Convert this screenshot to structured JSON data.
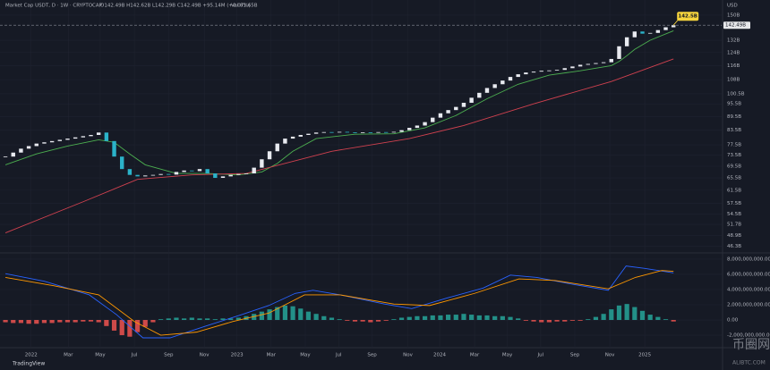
{
  "header": {
    "symbol": "Market Cap USDT, D · 1W · CRYPTOCAP",
    "ohlc": "O142.49B H142.62B L142.29B C142.49B +95.14M (+0.07%)",
    "volume": "Vol 81.65B",
    "currency": "USD",
    "brand": "TradingView",
    "watermark": "币圈网",
    "watermark_sub": "ALIBTC.COM"
  },
  "chart_data": [
    {
      "type": "candlestick",
      "log": true,
      "grid": true,
      "up_color": "#e8eaf0",
      "down_color": "#2bb3c9",
      "closes": [
        73,
        74.5,
        76,
        77,
        78,
        78.5,
        79,
        79.5,
        80,
        80.5,
        81,
        81.5,
        82.5,
        79,
        73,
        68.5,
        66.5,
        66,
        66.3,
        66.5,
        66.8,
        66.6,
        67.5,
        68,
        67.8,
        68.5,
        67,
        65.5,
        66,
        66.5,
        66.8,
        67,
        69,
        72,
        75,
        78,
        80,
        80.8,
        81.5,
        82,
        82.5,
        82.7,
        82.5,
        82.8,
        82.6,
        82.4,
        82.6,
        82.5,
        82.7,
        82.5,
        82.8,
        83.5,
        84.5,
        85.5,
        87,
        89,
        91,
        92.5,
        94,
        96,
        98.5,
        101,
        103.5,
        105.5,
        107.5,
        109.5,
        111,
        112,
        112.5,
        113,
        113.2,
        113.5,
        114.5,
        115.5,
        116.5,
        117,
        117.5,
        118,
        120,
        128,
        134,
        138,
        136.5,
        137,
        139,
        141,
        142.49
      ],
      "lines": [
        {
          "color": "#4caf50",
          "x": [
            0,
            4,
            8,
            12,
            14,
            16,
            18,
            22,
            26,
            30,
            33,
            35,
            37,
            40,
            45,
            50,
            54,
            58,
            62,
            66,
            70,
            74,
            78,
            79,
            80,
            81,
            83,
            86
          ],
          "values": [
            70,
            74,
            77,
            79.5,
            78.5,
            74,
            70,
            67,
            67,
            66.5,
            67.5,
            70.5,
            75,
            80,
            81.8,
            82,
            84.5,
            90,
            98,
            105.5,
            110.5,
            113,
            116,
            118.5,
            122,
            126,
            132,
            138.5
          ]
        },
        {
          "color": "#d0414f",
          "x": [
            0,
            10,
            17,
            24,
            31,
            42,
            52,
            59,
            68,
            78,
            86
          ],
          "values": [
            49.5,
            58,
            65,
            66.5,
            67,
            75,
            80,
            85.5,
            95.5,
            107,
            120
          ]
        }
      ],
      "last_price": {
        "value": 142.49,
        "label": "142.49B"
      },
      "annotation": {
        "value": 142.5,
        "label": "142.5B"
      },
      "xlim": [
        -0.7,
        92.2
      ],
      "ylim": [
        44.7,
        154.8
      ],
      "yticks": [
        {
          "value": 150,
          "label": "150B"
        },
        {
          "value": 132,
          "label": "132B"
        },
        {
          "value": 124,
          "label": "124B"
        },
        {
          "value": 116,
          "label": "116B"
        },
        {
          "value": 108,
          "label": "108B"
        },
        {
          "value": 100.5,
          "label": "100.5B"
        },
        {
          "value": 95.5,
          "label": "95.5B"
        },
        {
          "value": 89.5,
          "label": "89.5B"
        },
        {
          "value": 83.5,
          "label": "83.5B"
        },
        {
          "value": 77.5,
          "label": "77.5B"
        },
        {
          "value": 73.5,
          "label": "73.5B"
        },
        {
          "value": 69.5,
          "label": "69.5B"
        },
        {
          "value": 65.5,
          "label": "65.5B"
        },
        {
          "value": 61.5,
          "label": "61.5B"
        },
        {
          "value": 57.5,
          "label": "57.5B"
        },
        {
          "value": 54.5,
          "label": "54.5B"
        },
        {
          "value": 51.7,
          "label": "51.7B"
        },
        {
          "value": 48.9,
          "label": "48.9B"
        },
        {
          "value": 46.3,
          "label": "46.3B"
        }
      ],
      "xticks": [
        {
          "value": 3.3,
          "label": "2022"
        },
        {
          "value": 8.1,
          "label": "Mar"
        },
        {
          "value": 12.2,
          "label": "May"
        },
        {
          "value": 16.6,
          "label": "Jul"
        },
        {
          "value": 21,
          "label": "Sep"
        },
        {
          "value": 25.6,
          "label": "Nov"
        },
        {
          "value": 29.8,
          "label": "2023"
        },
        {
          "value": 34.2,
          "label": "Mar"
        },
        {
          "value": 38.6,
          "label": "May"
        },
        {
          "value": 42.9,
          "label": "Jul"
        },
        {
          "value": 47.2,
          "label": "Sep"
        },
        {
          "value": 51.8,
          "label": "Nov"
        },
        {
          "value": 55.9,
          "label": "2024"
        },
        {
          "value": 60.4,
          "label": "Mar"
        },
        {
          "value": 64.6,
          "label": "May"
        },
        {
          "value": 68.9,
          "label": "Jul"
        },
        {
          "value": 73.3,
          "label": "Sep"
        },
        {
          "value": 77.8,
          "label": "Nov"
        },
        {
          "value": 82.3,
          "label": "2025"
        }
      ]
    },
    {
      "type": "macd",
      "grid": true,
      "pos_color": "#26a69a",
      "neg_color": "#ef5350",
      "histogram": [
        -300000000.0,
        -400000000.0,
        -400000000.0,
        -500000000.0,
        -500000000.0,
        -400000000.0,
        -400000000.0,
        -300000000.0,
        -300000000.0,
        -300000000.0,
        -200000000.0,
        -200000000.0,
        -300000000.0,
        -800000000.0,
        -1400000000.0,
        -2000000000.0,
        -2200000000.0,
        -1600000000.0,
        -900000000.0,
        -300000000.0,
        100000000.0,
        200000000.0,
        300000000.0,
        200000000.0,
        300000000.0,
        200000000.0,
        200000000.0,
        100000000.0,
        200000000.0,
        200000000.0,
        300000000.0,
        500000000.0,
        800000000.0,
        1100000000.0,
        1400000000.0,
        1700000000.0,
        1900000000.0,
        1800000000.0,
        1500000000.0,
        1100000000.0,
        800000000.0,
        500000000.0,
        300000000.0,
        100000000.0,
        -100000000.0,
        -200000000.0,
        -200000000.0,
        -300000000.0,
        -200000000.0,
        -100000000.0,
        100000000.0,
        300000000.0,
        400000000.0,
        500000000.0,
        500000000.0,
        600000000.0,
        600000000.0,
        700000000.0,
        700000000.0,
        800000000.0,
        700000000.0,
        600000000.0,
        600000000.0,
        500000000.0,
        500000000.0,
        400000000.0,
        200000000.0,
        -100000000.0,
        -200000000.0,
        -300000000.0,
        -300000000.0,
        -200000000.0,
        -200000000.0,
        -100000000.0,
        -100000000.0,
        100000000.0,
        400000000.0,
        800000000.0,
        1400000000.0,
        1900000000.0,
        2100000000.0,
        1700000000.0,
        1200000000.0,
        700000000.0,
        400000000.0,
        100000000.0,
        -200000000.0
      ],
      "lines": [
        {
          "color": "#2962ff",
          "x": [
            0,
            5,
            10.8,
            14.3,
            17.7,
            21.2,
            25.8,
            30.4,
            33.9,
            37.3,
            39.6,
            43.1,
            48.8,
            52.3,
            56.9,
            61.5,
            65,
            68.4,
            73,
            77.6,
            79.9,
            82.2,
            86
          ],
          "values": [
            6100000000.0,
            5100000000.0,
            3300000000.0,
            700000000.0,
            -2350000000.0,
            -2350000000.0,
            -800000000.0,
            700000000.0,
            1900000000.0,
            3500000000.0,
            3900000000.0,
            3300000000.0,
            2100000000.0,
            1500000000.0,
            2900000000.0,
            4200000000.0,
            5900000000.0,
            5600000000.0,
            4700000000.0,
            3900000000.0,
            7100000000.0,
            6800000000.0,
            6200000000.0
          ]
        },
        {
          "color": "#ff9800",
          "x": [
            0,
            6.2,
            12,
            16.6,
            20,
            24.6,
            29.3,
            33.9,
            38.5,
            43.1,
            50,
            54.6,
            60.4,
            66.1,
            70.7,
            77.6,
            81.1,
            84.5,
            86
          ],
          "values": [
            5600000000.0,
            4500000000.0,
            3300000000.0,
            -200000000.0,
            -2000000000.0,
            -1600000000.0,
            -200000000.0,
            900000000.0,
            3300000000.0,
            3300000000.0,
            2100000000.0,
            1900000000.0,
            3500000000.0,
            5400000000.0,
            5200000000.0,
            4100000000.0,
            5600000000.0,
            6500000000.0,
            6400000000.0
          ]
        }
      ],
      "ylim": [
        -2820000000.0,
        8820000000.0
      ],
      "yticks": [
        {
          "value": 8000000000.0,
          "label": "8,000,000,000.00"
        },
        {
          "value": 6000000000.0,
          "label": "6,000,000,000.00"
        },
        {
          "value": 4000000000.0,
          "label": "4,000,000,000.00"
        },
        {
          "value": 2000000000.0,
          "label": "2,000,000,000.00"
        },
        {
          "value": 0,
          "label": "0.00"
        },
        {
          "value": -2000000000.0,
          "label": "-2,000,000,000.00"
        }
      ]
    }
  ]
}
